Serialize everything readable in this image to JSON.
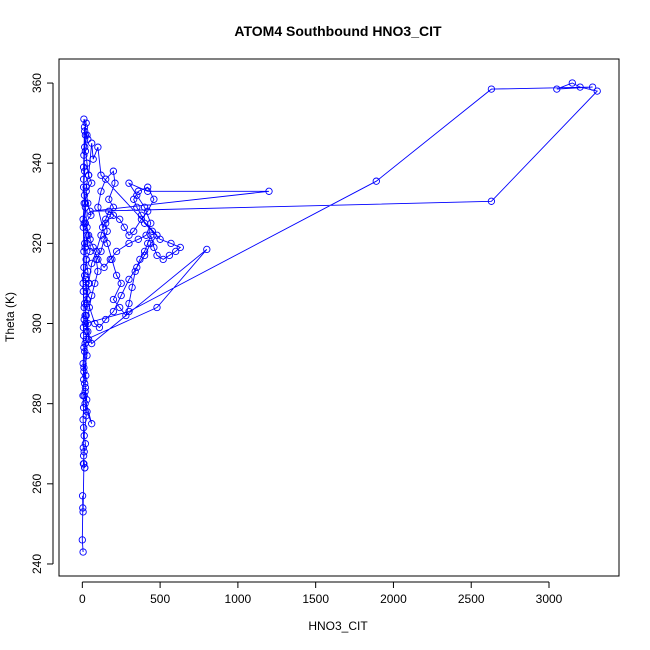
{
  "chart_data": {
    "type": "line",
    "title": "ATOM4 Southbound HNO3_CIT",
    "xlabel": "HNO3_CIT",
    "ylabel": "Theta (K)",
    "xlim": [
      -150,
      3450
    ],
    "ylim": [
      237,
      366
    ],
    "x_ticks": [
      0,
      500,
      1000,
      1500,
      2000,
      2500,
      3000
    ],
    "y_ticks": [
      240,
      260,
      280,
      300,
      320,
      340,
      360
    ],
    "x_tick_labels": [
      "0",
      "500",
      "1000",
      "1500",
      "2000",
      "2500",
      "3000"
    ],
    "y_tick_labels": [
      "240",
      "260",
      "280",
      "300",
      "320",
      "340",
      "360"
    ],
    "marker": "open-circle",
    "line_color": "#0000ff",
    "grid": false,
    "legend": "none",
    "series": [
      {
        "points": [
          [
            5,
            243
          ],
          [
            0,
            246
          ],
          [
            3,
            254
          ],
          [
            2,
            257
          ],
          [
            5,
            253
          ],
          [
            10,
            265
          ],
          [
            15,
            264
          ],
          [
            8,
            267
          ],
          [
            20,
            270
          ],
          [
            12,
            272
          ],
          [
            25,
            277
          ],
          [
            18,
            280
          ],
          [
            28,
            281
          ],
          [
            15,
            285
          ],
          [
            22,
            287
          ],
          [
            10,
            288
          ],
          [
            30,
            292
          ],
          [
            18,
            295
          ],
          [
            40,
            296
          ],
          [
            35,
            300
          ],
          [
            25,
            302
          ],
          [
            15,
            305
          ],
          [
            30,
            308
          ],
          [
            20,
            311
          ],
          [
            45,
            310
          ],
          [
            35,
            313
          ],
          [
            25,
            316
          ],
          [
            50,
            318
          ],
          [
            30,
            320
          ],
          [
            40,
            322
          ],
          [
            20,
            325
          ],
          [
            55,
            327
          ],
          [
            35,
            330
          ],
          [
            25,
            333
          ],
          [
            60,
            335
          ],
          [
            40,
            337
          ],
          [
            30,
            340
          ],
          [
            20,
            343
          ],
          [
            35,
            346
          ],
          [
            15,
            348
          ],
          [
            25,
            350
          ],
          [
            10,
            351
          ],
          [
            30,
            347
          ],
          [
            15,
            344
          ],
          [
            8,
            336
          ],
          [
            12,
            330
          ],
          [
            5,
            326
          ],
          [
            15,
            320
          ],
          [
            10,
            314
          ],
          [
            6,
            308
          ],
          [
            12,
            301
          ],
          [
            8,
            297
          ],
          [
            15,
            293
          ],
          [
            10,
            289
          ],
          [
            20,
            284
          ],
          [
            12,
            282
          ],
          [
            60,
            275
          ],
          [
            30,
            278
          ],
          [
            18,
            283
          ],
          [
            25,
            298
          ],
          [
            45,
            304
          ],
          [
            60,
            307
          ],
          [
            80,
            310
          ],
          [
            100,
            313
          ],
          [
            90,
            316
          ],
          [
            120,
            318
          ],
          [
            140,
            321
          ],
          [
            160,
            323
          ],
          [
            150,
            325
          ],
          [
            180,
            327
          ],
          [
            200,
            329
          ],
          [
            170,
            331
          ],
          [
            210,
            335
          ],
          [
            200,
            338
          ],
          [
            150,
            336
          ],
          [
            120,
            333
          ],
          [
            100,
            329
          ],
          [
            130,
            324
          ],
          [
            160,
            320
          ],
          [
            190,
            316
          ],
          [
            220,
            312
          ],
          [
            250,
            310
          ],
          [
            200,
            306
          ],
          [
            240,
            304
          ],
          [
            280,
            302
          ],
          [
            300,
            305
          ],
          [
            320,
            309
          ],
          [
            340,
            313
          ],
          [
            370,
            316
          ],
          [
            400,
            318
          ],
          [
            420,
            320
          ],
          [
            440,
            322
          ],
          [
            460,
            319
          ],
          [
            480,
            317
          ],
          [
            520,
            316
          ],
          [
            560,
            317
          ],
          [
            600,
            318
          ],
          [
            630,
            319
          ],
          [
            570,
            320
          ],
          [
            500,
            321
          ],
          [
            450,
            323
          ],
          [
            400,
            325
          ],
          [
            380,
            327
          ],
          [
            350,
            329
          ],
          [
            330,
            331
          ],
          [
            360,
            333
          ],
          [
            420,
            334
          ],
          [
            460,
            331
          ],
          [
            420,
            328
          ],
          [
            380,
            326
          ],
          [
            330,
            323
          ],
          [
            300,
            322
          ],
          [
            270,
            324
          ],
          [
            240,
            326
          ],
          [
            200,
            327
          ],
          [
            170,
            328
          ],
          [
            150,
            326
          ],
          [
            120,
            322
          ],
          [
            90,
            318
          ],
          [
            60,
            315
          ],
          [
            40,
            310
          ],
          [
            30,
            306
          ],
          [
            80,
            300
          ],
          [
            110,
            299
          ],
          [
            150,
            301
          ],
          [
            200,
            303
          ],
          [
            250,
            307
          ],
          [
            300,
            311
          ],
          [
            350,
            314
          ],
          [
            400,
            317
          ],
          [
            440,
            320
          ],
          [
            480,
            322
          ],
          [
            120,
            337
          ],
          [
            100,
            344
          ],
          [
            70,
            341
          ],
          [
            60,
            345
          ],
          [
            40,
            337
          ],
          [
            25,
            334
          ],
          [
            20,
            329
          ],
          [
            30,
            324
          ],
          [
            50,
            321
          ],
          [
            70,
            319
          ],
          [
            100,
            316
          ],
          [
            140,
            314
          ],
          [
            180,
            316
          ],
          [
            220,
            318
          ],
          [
            300,
            320
          ],
          [
            360,
            321
          ],
          [
            410,
            322
          ],
          [
            440,
            325
          ],
          [
            400,
            329
          ],
          [
            350,
            332
          ],
          [
            300,
            335
          ],
          [
            420,
            333
          ],
          [
            1200,
            333
          ],
          [
            50,
            328
          ],
          [
            2630,
            330.5
          ],
          [
            3310,
            358
          ],
          [
            3200,
            359
          ],
          [
            3150,
            360
          ],
          [
            3050,
            358.5
          ],
          [
            3280,
            359
          ],
          [
            2630,
            358.5
          ],
          [
            1890,
            335.5
          ],
          [
            300,
            303
          ],
          [
            20,
            300
          ],
          [
            60,
            295
          ],
          [
            800,
            318.5
          ],
          [
            480,
            304
          ],
          [
            25,
            296
          ],
          [
            35,
            298
          ],
          [
            18,
            302
          ],
          [
            28,
            305
          ],
          [
            22,
            309
          ],
          [
            15,
            312
          ],
          [
            25,
            316
          ],
          [
            18,
            319
          ],
          [
            30,
            322
          ],
          [
            12,
            325
          ],
          [
            20,
            330
          ],
          [
            8,
            334
          ],
          [
            15,
            338
          ],
          [
            10,
            342
          ],
          [
            20,
            347
          ],
          [
            14,
            349
          ],
          [
            8,
            339
          ],
          [
            14,
            332
          ],
          [
            6,
            324
          ],
          [
            10,
            318
          ],
          [
            5,
            310
          ],
          [
            12,
            304
          ],
          [
            7,
            299
          ],
          [
            10,
            294
          ],
          [
            5,
            290
          ],
          [
            9,
            286
          ],
          [
            4,
            282
          ],
          [
            8,
            279
          ],
          [
            5,
            276
          ],
          [
            8,
            274
          ],
          [
            6,
            269
          ],
          [
            12,
            268
          ],
          [
            7,
            265
          ],
          [
            16,
            264
          ]
        ]
      }
    ]
  }
}
